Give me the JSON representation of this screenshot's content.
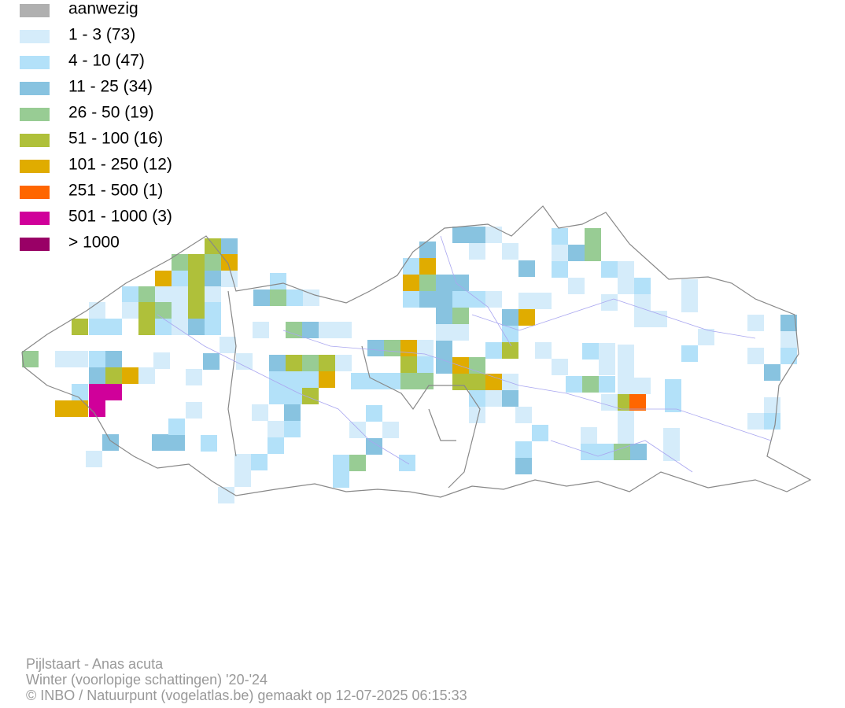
{
  "legend": [
    {
      "label": "aanwezig",
      "color": "#b0b0b0"
    },
    {
      "label": "1 - 3 (73)",
      "color": "#d5ecfa"
    },
    {
      "label": "4 - 10 (47)",
      "color": "#b3e1f9"
    },
    {
      "label": "11 - 25 (34)",
      "color": "#88c3e0"
    },
    {
      "label": "26 - 50 (19)",
      "color": "#98cc94"
    },
    {
      "label": "51 - 100 (16)",
      "color": "#afc03a"
    },
    {
      "label": "101 - 250 (12)",
      "color": "#e0ac00"
    },
    {
      "label": "251 - 500 (1)",
      "color": "#ff6600"
    },
    {
      "label": "501 - 1000 (3)",
      "color": "#d0009a"
    },
    {
      "label": "> 1000",
      "color": "#990066"
    }
  ],
  "footer": [
    "Pijlstaart - Anas acuta",
    "Winter (voorlopige schattingen) '20-'24",
    "© INBO / Natuurpunt (vogelatlas.be) gemaakt op 12-07-2025 06:15:33"
  ]
}
